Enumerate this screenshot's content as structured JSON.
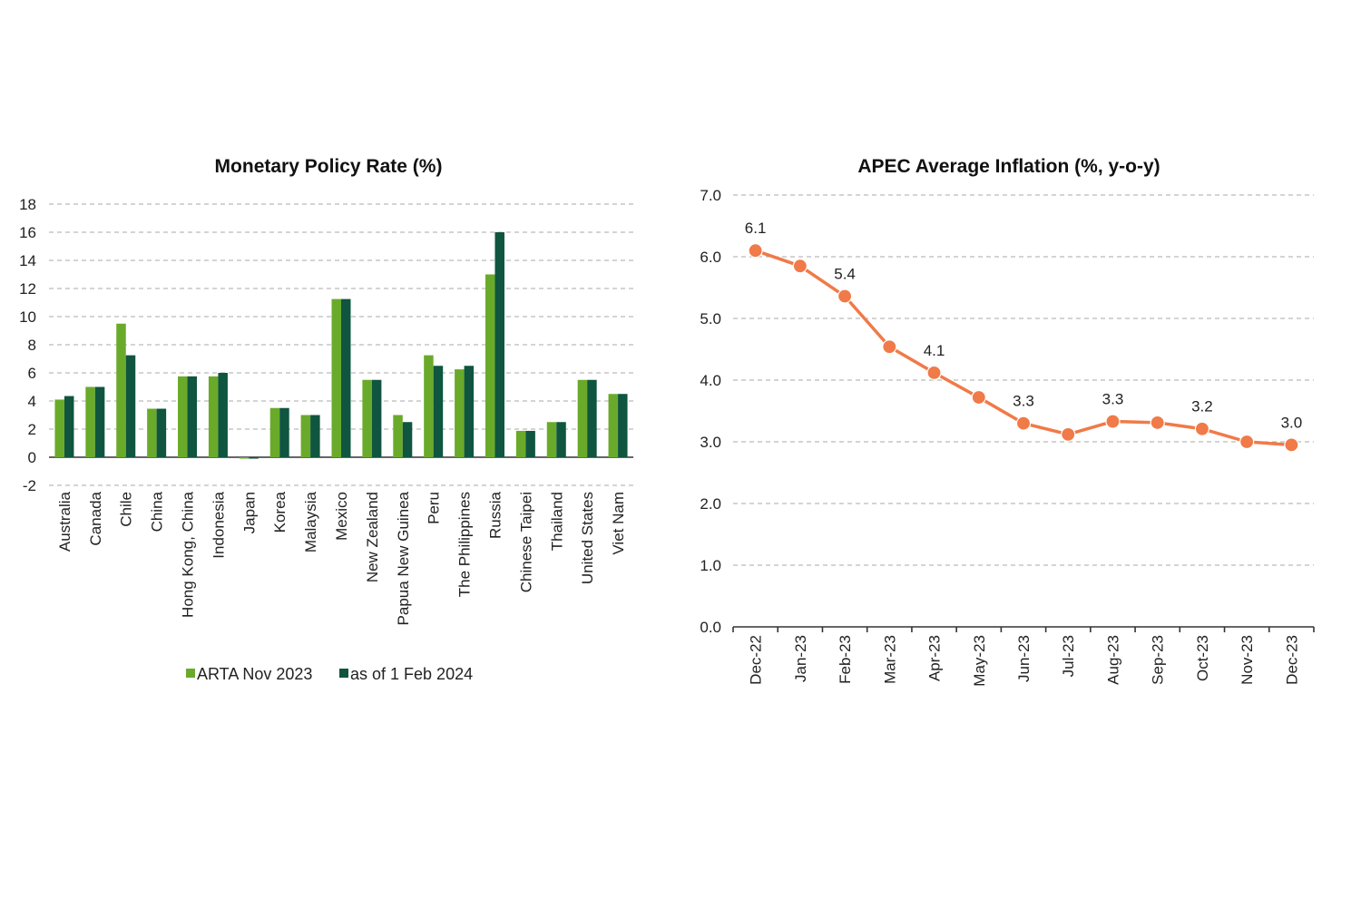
{
  "colors": {
    "series_a": "#6aaa2a",
    "series_b": "#0f5540",
    "line": "#f07a48",
    "grid": "#aaaaaa",
    "axis": "#333333"
  },
  "chart_data": [
    {
      "type": "bar",
      "title": "Monetary Policy Rate (%)",
      "xlabel": "",
      "ylabel": "",
      "ylim": [
        -2,
        18
      ],
      "yticks": [
        "18",
        "16",
        "14",
        "12",
        "10",
        "8",
        "6",
        "4",
        "2",
        "0",
        "-2"
      ],
      "ytick_values": [
        18,
        16,
        14,
        12,
        10,
        8,
        6,
        4,
        2,
        0,
        -2
      ],
      "grid": true,
      "legend_position": "bottom",
      "categories": [
        "Australia",
        "Canada",
        "Chile",
        "China",
        "Hong Kong, China",
        "Indonesia",
        "Japan",
        "Korea",
        "Malaysia",
        "Mexico",
        "New Zealand",
        "Papua New Guinea",
        "Peru",
        "The Philippines",
        "Russia",
        "Chinese Taipei",
        "Thailand",
        "United States",
        "Viet Nam"
      ],
      "series": [
        {
          "name": "ARTA Nov 2023",
          "values": [
            4.1,
            5.0,
            9.5,
            3.45,
            5.75,
            5.75,
            -0.1,
            3.5,
            3.0,
            11.25,
            5.5,
            3.0,
            7.25,
            6.25,
            13.0,
            1.875,
            2.5,
            5.5,
            4.5
          ]
        },
        {
          "name": "as of 1 Feb 2024",
          "values": [
            4.35,
            5.0,
            7.25,
            3.45,
            5.75,
            6.0,
            -0.1,
            3.5,
            3.0,
            11.25,
            5.5,
            2.5,
            6.5,
            6.5,
            16.0,
            1.875,
            2.5,
            5.5,
            4.5
          ]
        }
      ]
    },
    {
      "type": "line",
      "title": "APEC Average Inflation (%, y-o-y)",
      "xlabel": "",
      "ylabel": "",
      "ylim": [
        0,
        7
      ],
      "yticks": [
        "7.0",
        "6.0",
        "5.0",
        "4.0",
        "3.0",
        "2.0",
        "1.0",
        "0.0"
      ],
      "ytick_values": [
        7,
        6,
        5,
        4,
        3,
        2,
        1,
        0
      ],
      "grid": true,
      "x": [
        "Dec-22",
        "Jan-23",
        "Feb-23",
        "Mar-23",
        "Apr-23",
        "May-23",
        "Jun-23",
        "Jul-23",
        "Aug-23",
        "Sep-23",
        "Oct-23",
        "Nov-23",
        "Dec-23"
      ],
      "series": [
        {
          "values": [
            6.1,
            5.85,
            5.36,
            4.54,
            4.12,
            3.72,
            3.3,
            3.12,
            3.33,
            3.31,
            3.21,
            3.0,
            2.95
          ]
        }
      ],
      "data_labels": [
        "6.1",
        "",
        "5.4",
        "",
        "4.1",
        "",
        "3.3",
        "",
        "3.3",
        "",
        "3.2",
        "",
        "3.0"
      ]
    }
  ]
}
